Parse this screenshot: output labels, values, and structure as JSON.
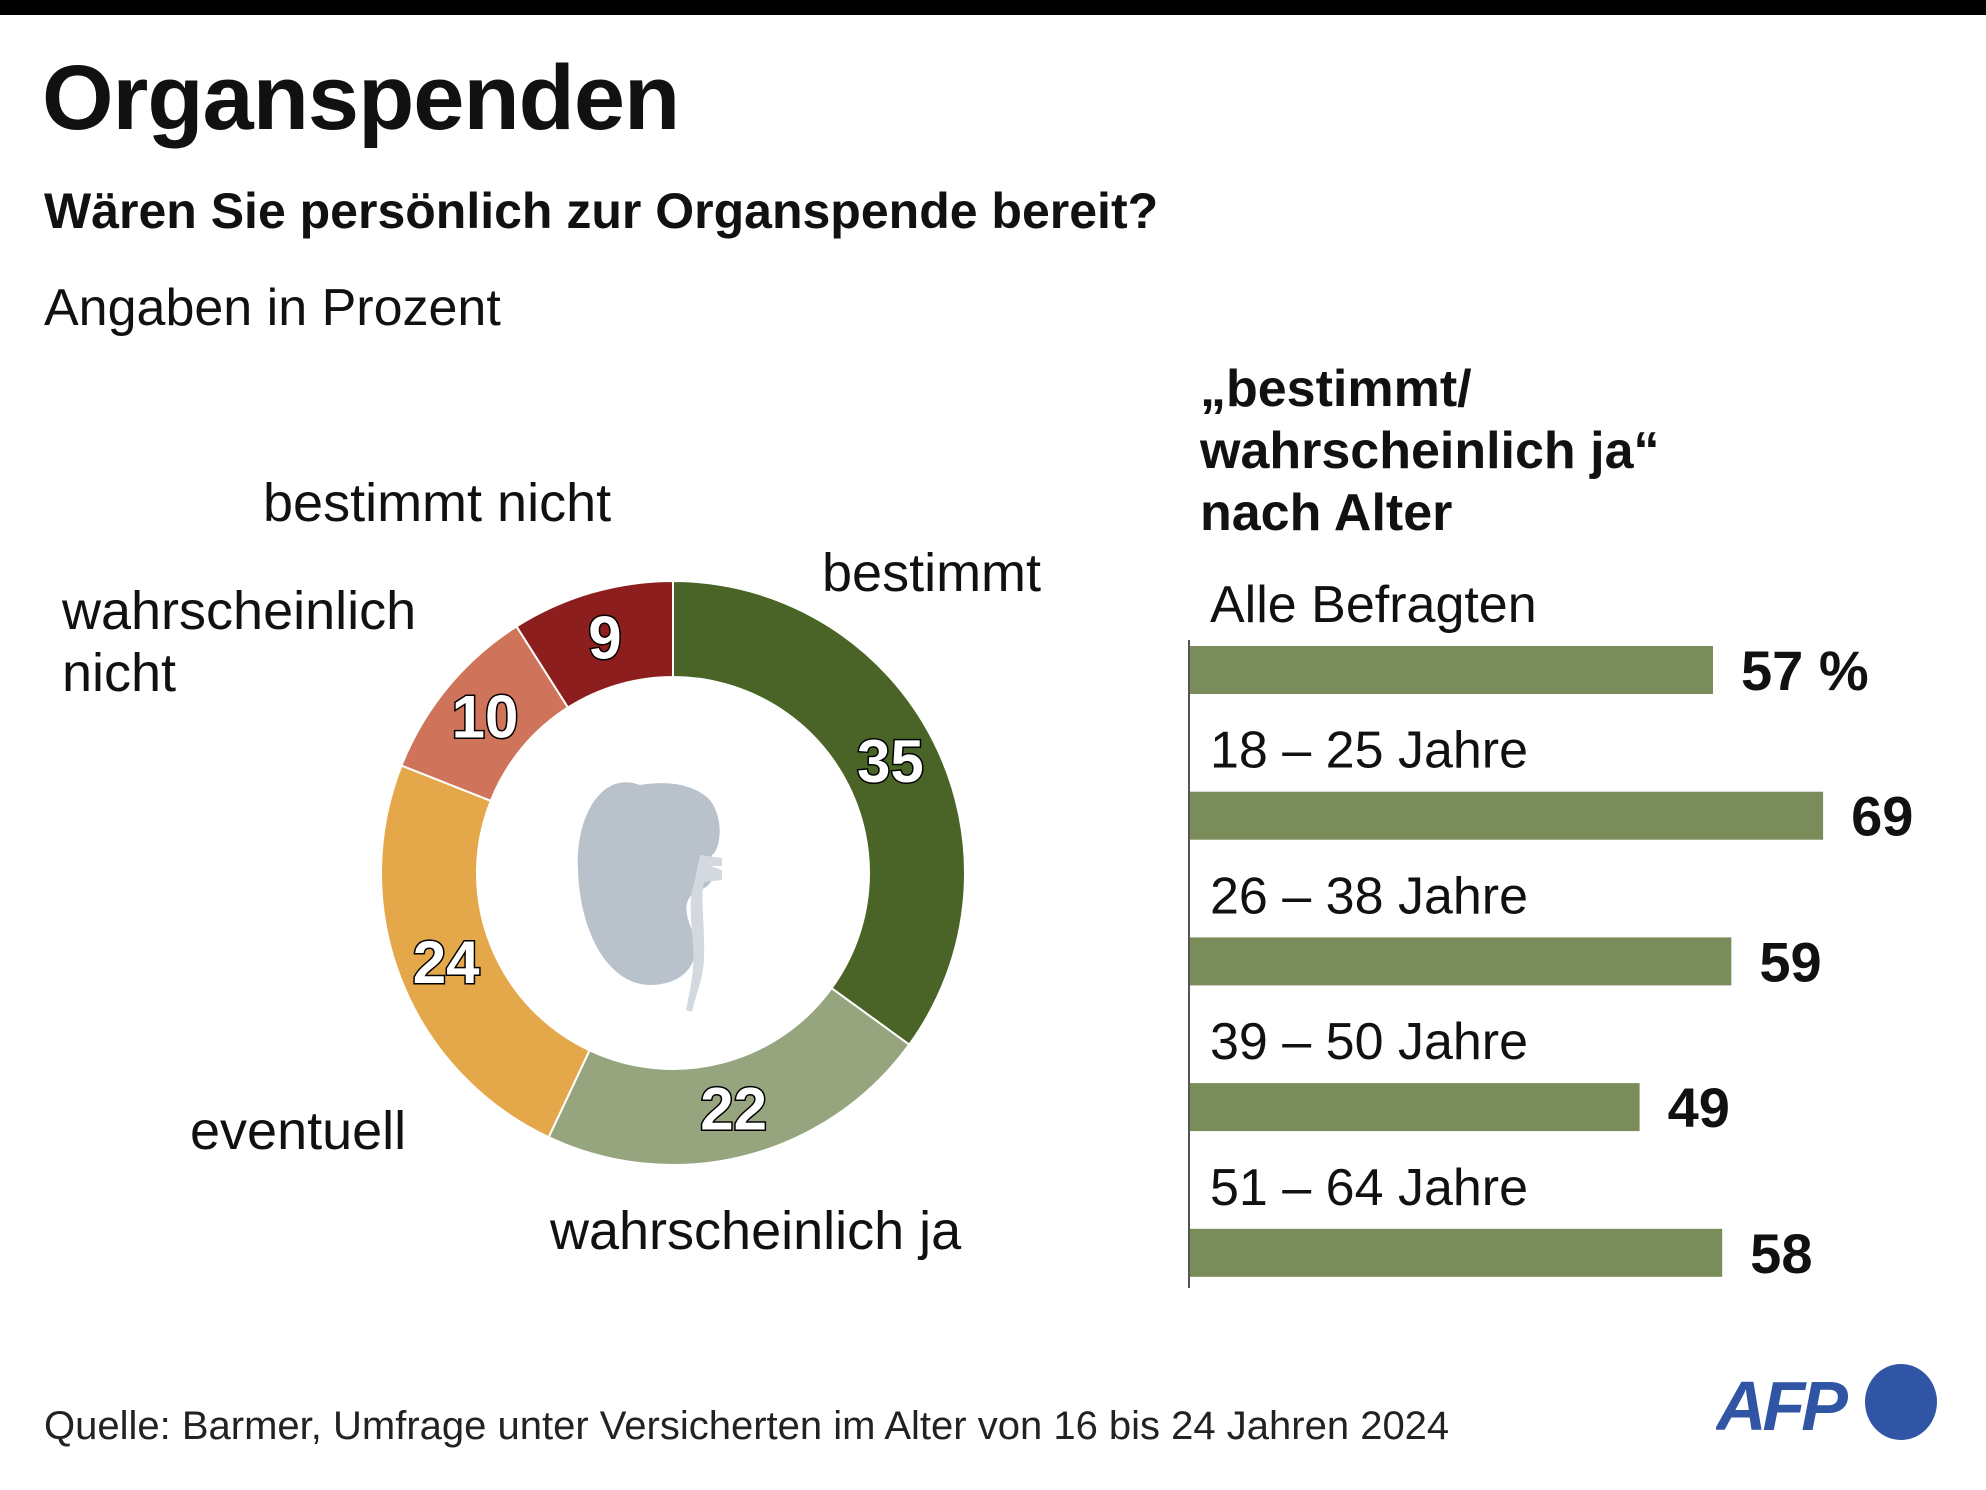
{
  "header": {
    "title": "Organspenden",
    "subtitle": "Wären Sie persönlich zur Organspende bereit?",
    "unit_note": "Angaben in Prozent"
  },
  "footer": {
    "source": "Quelle: Barmer, Umfrage unter Versicherten im Alter von 16 bis 24 Jahren 2024",
    "logo_text": "AFP",
    "logo_color": "#2f55a4"
  },
  "chart_data": [
    {
      "type": "pie",
      "variant": "donut",
      "title": "Wären Sie persönlich zur Organspende bereit?",
      "unit": "percent",
      "start": "top",
      "direction": "clockwise",
      "center_icon": "kidney-icon",
      "slices": [
        {
          "label": "bestimmt",
          "value": 35,
          "color": "#4a6428"
        },
        {
          "label": "wahrscheinlich ja",
          "value": 22,
          "color": "#97a57f"
        },
        {
          "label": "eventuell",
          "value": 24,
          "color": "#e4a84a"
        },
        {
          "label": "wahrscheinlich nicht",
          "label_lines": [
            "wahrscheinlich",
            "nicht"
          ],
          "value": 10,
          "color": "#cf735a"
        },
        {
          "label": "bestimmt nicht",
          "value": 9,
          "color": "#8c1f1e"
        }
      ]
    },
    {
      "type": "bar",
      "orientation": "horizontal",
      "title_lines": [
        "„bestimmt/",
        "wahrscheinlich ja“",
        "nach Alter"
      ],
      "categories": [
        "Alle Befragten",
        "18 – 25 Jahre",
        "26 – 38 Jahre",
        "39 – 50 Jahre",
        "51 – 64 Jahre"
      ],
      "values": [
        57,
        69,
        59,
        49,
        58
      ],
      "value_labels": [
        "57 %",
        "69",
        "59",
        "49",
        "58"
      ],
      "unit": "percent",
      "color": "#7b8c5b",
      "xlim": [
        0,
        100
      ],
      "grid": false
    }
  ]
}
